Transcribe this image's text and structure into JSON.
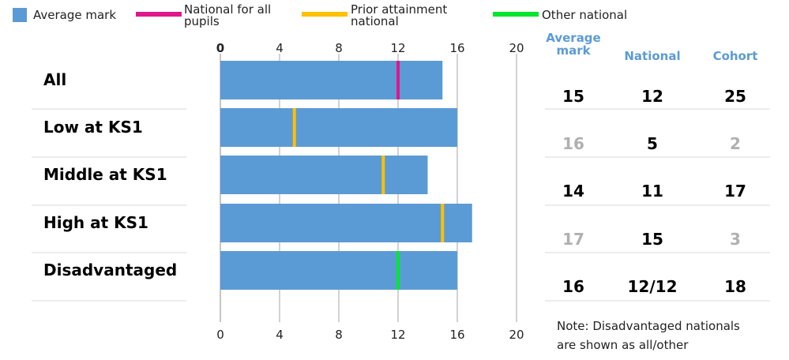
{
  "chart_data": {
    "type": "bar",
    "orientation": "horizontal",
    "categories": [
      "All",
      "Low at KS1",
      "Middle at KS1",
      "High at KS1",
      "Disadvantaged"
    ],
    "values": [
      15,
      16,
      14,
      17,
      16
    ],
    "markers": [
      {
        "category": "All",
        "value": 12,
        "type": "National for all pupils"
      },
      {
        "category": "Low at KS1",
        "value": 5,
        "type": "Prior attainment national"
      },
      {
        "category": "Middle at KS1",
        "value": 11,
        "type": "Prior attainment national"
      },
      {
        "category": "High at KS1",
        "value": 15,
        "type": "Prior attainment national"
      },
      {
        "category": "Disadvantaged",
        "value": 12,
        "type": "Other national"
      }
    ],
    "xlim": [
      0,
      20
    ],
    "ticks": [
      "0",
      "4",
      "8",
      "12",
      "16",
      "20"
    ],
    "tick_values": [
      0,
      4,
      8,
      12,
      16,
      20
    ],
    "legend": [
      {
        "label": "Average mark",
        "color": "#5b9bd5",
        "shape": "square"
      },
      {
        "label": "National for all pupils",
        "label_lines": [
          "National for all",
          "pupils"
        ],
        "color": "#e0168c",
        "shape": "line"
      },
      {
        "label": "Prior attainment national",
        "label_lines": [
          "Prior attainment",
          "national"
        ],
        "color": "#ffc000",
        "shape": "line"
      },
      {
        "label": "Other national",
        "label_lines": [
          "Other national"
        ],
        "color": "#00e62e",
        "shape": "line"
      }
    ],
    "legend_placement": "top",
    "grid": true
  },
  "table": {
    "headers": [
      {
        "lines": [
          "Average",
          "mark"
        ]
      },
      {
        "lines": [
          "National"
        ]
      },
      {
        "lines": [
          "Cohort"
        ]
      }
    ],
    "rows": [
      {
        "average_mark": "15",
        "national": "12",
        "cohort": "25",
        "muted": false
      },
      {
        "average_mark": "16",
        "national": "5",
        "cohort": "2",
        "muted": true
      },
      {
        "average_mark": "14",
        "national": "11",
        "cohort": "17",
        "muted": false
      },
      {
        "average_mark": "17",
        "national": "15",
        "cohort": "3",
        "muted": true
      },
      {
        "average_mark": "16",
        "national": "12/12",
        "cohort": "18",
        "muted": false
      }
    ]
  },
  "note": {
    "lines": [
      "Note: Disadvantaged nationals",
      "are shown as all/other"
    ]
  },
  "colors": {
    "bar": "#5b9bd5",
    "header": "#5b9bd5",
    "muted_text": "#b0b0b0",
    "grid": "#a6a6a6",
    "separator": "#d9d9d9"
  }
}
